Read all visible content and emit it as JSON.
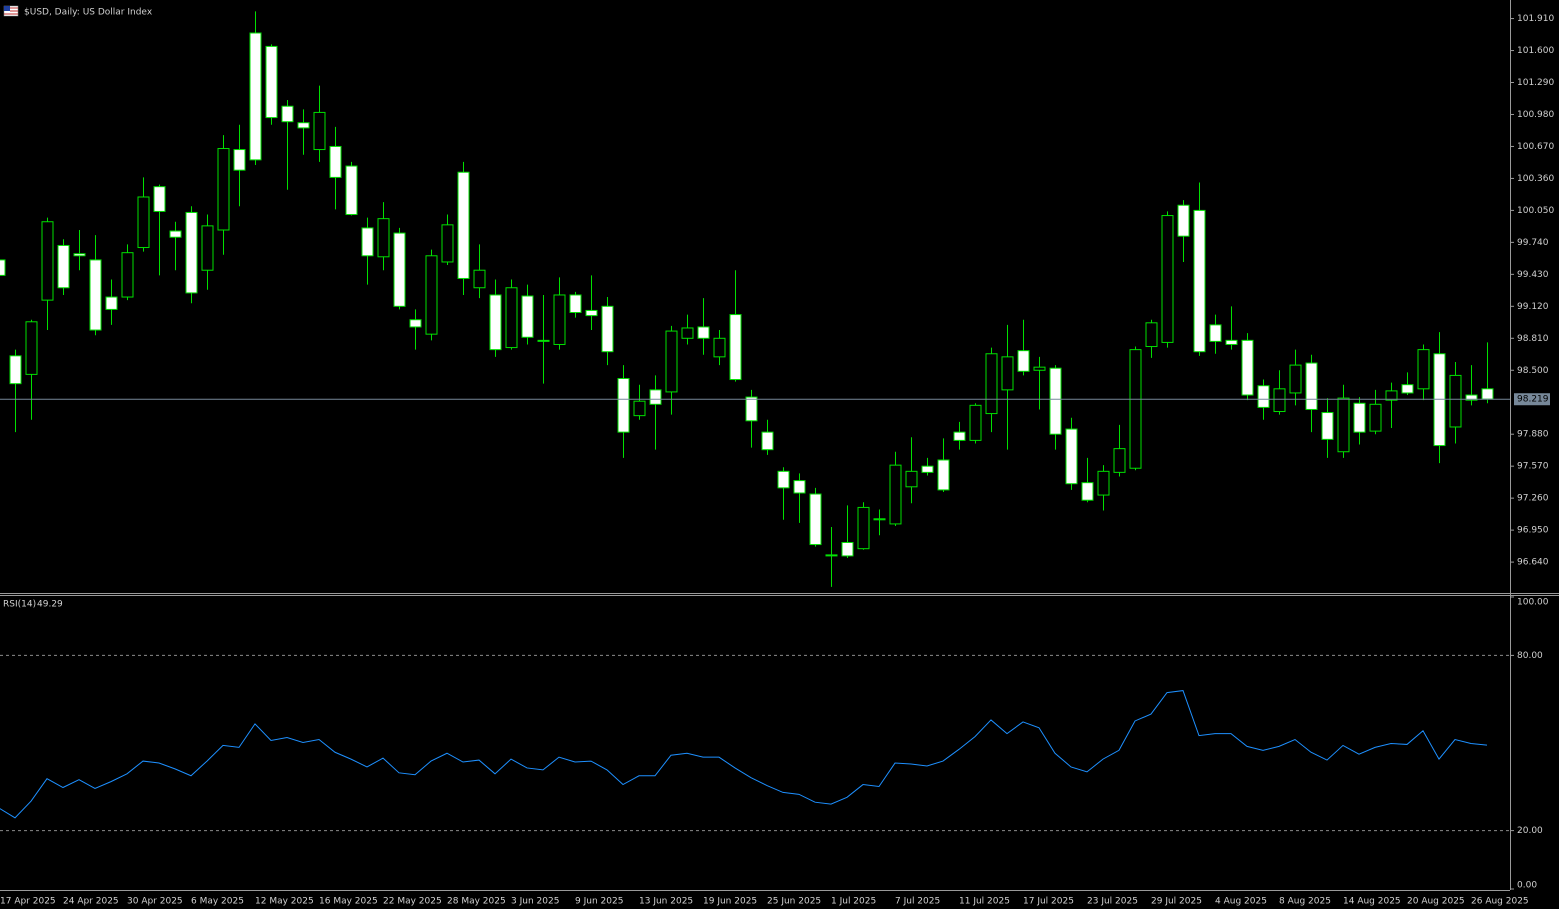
{
  "chart_data": [
    {
      "type": "candlestick",
      "title": "$USD, Daily:  US Dollar Index",
      "categories": [
        "17 Apr 2025",
        null,
        null,
        null,
        "24 Apr 2025",
        null,
        null,
        null,
        "30 Apr 2025",
        null,
        null,
        null,
        "6 May 2025",
        null,
        null,
        null,
        "12 May 2025",
        null,
        null,
        null,
        "16 May 2025",
        null,
        null,
        null,
        "22 May 2025",
        null,
        null,
        null,
        "28 May 2025",
        null,
        null,
        null,
        "3 Jun 2025",
        null,
        null,
        null,
        "9 Jun 2025",
        null,
        null,
        null,
        "13 Jun 2025",
        null,
        null,
        null,
        "19 Jun 2025",
        null,
        null,
        null,
        "25 Jun 2025",
        null,
        null,
        null,
        "1 Jul 2025",
        null,
        null,
        null,
        "7 Jul 2025",
        null,
        null,
        null,
        "11 Jul 2025",
        null,
        null,
        null,
        "17 Jul 2025",
        null,
        null,
        null,
        "23 Jul 2025",
        null,
        null,
        null,
        "29 Jul 2025",
        null,
        null,
        null,
        "4 Aug 2025",
        null,
        null,
        null,
        "8 Aug 2025",
        null,
        null,
        null,
        "14 Aug 2025",
        null,
        null,
        null,
        "20 Aug 2025",
        null,
        null,
        null,
        "26 Aug 2025",
        null
      ],
      "open": [
        99.57,
        98.64,
        98.46,
        99.18,
        99.71,
        99.63,
        99.57,
        99.21,
        99.21,
        99.69,
        100.28,
        99.85,
        100.03,
        99.47,
        99.86,
        100.64,
        101.77,
        101.64,
        101.06,
        100.9,
        100.64,
        100.67,
        100.48,
        99.88,
        99.6,
        99.83,
        98.99,
        98.85,
        99.55,
        100.42,
        99.3,
        99.23,
        98.72,
        99.22,
        98.79,
        98.75,
        99.23,
        99.08,
        99.12,
        98.42,
        98.06,
        98.31,
        98.29,
        98.81,
        98.92,
        98.63,
        99.04,
        98.24,
        97.9,
        97.52,
        97.43,
        97.3,
        96.71,
        96.83,
        96.77,
        97.05,
        97.01,
        97.37,
        97.57,
        97.63,
        97.9,
        97.82,
        98.08,
        98.31,
        98.69,
        98.5,
        98.52,
        97.93,
        97.41,
        97.29,
        97.51,
        97.55,
        98.73,
        98.77,
        100.1,
        100.05,
        98.94,
        98.79,
        98.79,
        98.35,
        98.1,
        98.28,
        98.57,
        98.09,
        97.71,
        98.18,
        97.91,
        98.21,
        98.36,
        98.32,
        98.66,
        97.95,
        98.26,
        98.32
      ],
      "high": [
        99.62,
        98.7,
        98.99,
        99.98,
        99.77,
        99.86,
        99.81,
        99.38,
        99.72,
        100.37,
        100.3,
        99.94,
        100.09,
        100.01,
        100.78,
        100.88,
        101.98,
        101.66,
        101.12,
        101.03,
        101.26,
        100.86,
        100.52,
        99.98,
        100.13,
        99.88,
        99.09,
        99.67,
        100.01,
        100.52,
        99.72,
        99.38,
        99.38,
        99.33,
        99.23,
        99.4,
        99.26,
        99.42,
        99.21,
        98.55,
        98.36,
        98.45,
        98.93,
        99.04,
        99.2,
        98.89,
        99.47,
        98.31,
        98.02,
        97.56,
        97.5,
        97.36,
        96.98,
        97.19,
        97.22,
        97.15,
        97.71,
        97.85,
        97.65,
        97.84,
        98.0,
        98.18,
        98.72,
        98.94,
        98.99,
        98.63,
        98.55,
        98.04,
        97.65,
        97.58,
        97.97,
        98.73,
        98.99,
        100.04,
        100.15,
        100.32,
        99.04,
        99.12,
        98.86,
        98.41,
        98.5,
        98.7,
        98.65,
        98.23,
        98.36,
        98.24,
        98.31,
        98.38,
        98.48,
        98.75,
        98.87,
        98.58,
        98.55,
        98.77
      ],
      "low": [
        99.38,
        97.9,
        98.02,
        98.89,
        99.23,
        99.47,
        98.84,
        98.94,
        99.18,
        99.65,
        99.42,
        99.47,
        99.15,
        99.28,
        99.62,
        100.09,
        100.49,
        100.88,
        100.25,
        100.59,
        100.52,
        100.06,
        100.0,
        99.33,
        99.47,
        99.09,
        98.7,
        98.79,
        99.52,
        99.23,
        99.2,
        98.63,
        98.7,
        98.75,
        98.37,
        98.7,
        99.01,
        98.89,
        98.55,
        97.65,
        98.02,
        97.73,
        98.07,
        98.75,
        98.65,
        98.55,
        98.39,
        97.75,
        97.68,
        97.05,
        97.02,
        96.79,
        96.4,
        96.68,
        96.76,
        96.9,
        96.99,
        97.21,
        97.48,
        97.32,
        97.73,
        97.79,
        97.9,
        97.73,
        98.45,
        98.12,
        97.73,
        97.34,
        97.22,
        97.14,
        97.47,
        97.53,
        98.62,
        98.72,
        99.55,
        98.64,
        98.66,
        98.7,
        98.21,
        98.02,
        98.07,
        98.16,
        97.9,
        97.65,
        97.65,
        97.78,
        97.88,
        97.94,
        98.26,
        98.21,
        97.6,
        97.79,
        98.16,
        98.18
      ],
      "close": [
        99.42,
        98.37,
        98.97,
        99.94,
        99.3,
        99.61,
        98.89,
        99.09,
        99.64,
        100.18,
        100.04,
        99.79,
        99.25,
        99.9,
        100.65,
        100.44,
        100.54,
        100.95,
        100.91,
        100.85,
        101.0,
        100.37,
        100.01,
        99.61,
        99.97,
        99.12,
        98.92,
        99.61,
        99.91,
        99.39,
        99.47,
        98.7,
        99.3,
        98.82,
        98.78,
        99.23,
        99.06,
        99.03,
        98.68,
        97.9,
        98.2,
        98.17,
        98.88,
        98.91,
        98.81,
        98.81,
        98.41,
        98.01,
        97.73,
        97.36,
        97.31,
        96.81,
        96.7,
        96.7,
        97.17,
        97.06,
        97.58,
        97.52,
        97.51,
        97.34,
        97.82,
        98.16,
        98.66,
        98.63,
        98.49,
        98.53,
        97.88,
        97.4,
        97.24,
        97.52,
        97.74,
        98.7,
        98.96,
        100.0,
        99.8,
        98.68,
        98.78,
        98.75,
        98.26,
        98.14,
        98.32,
        98.55,
        98.12,
        97.83,
        98.23,
        97.9,
        98.17,
        98.3,
        98.28,
        98.7,
        97.77,
        98.45,
        98.21,
        98.22
      ],
      "ylim": [
        96.35,
        102.09
      ],
      "yticks": [
        {
          "value": 101.91,
          "label": "101.910"
        },
        {
          "value": 101.6,
          "label": "101.600"
        },
        {
          "value": 101.29,
          "label": "101.290"
        },
        {
          "value": 100.98,
          "label": "100.980"
        },
        {
          "value": 100.67,
          "label": "100.670"
        },
        {
          "value": 100.36,
          "label": "100.360"
        },
        {
          "value": 100.05,
          "label": "100.050"
        },
        {
          "value": 99.74,
          "label": "99.740"
        },
        {
          "value": 99.43,
          "label": "99.430"
        },
        {
          "value": 99.12,
          "label": "99.120"
        },
        {
          "value": 98.81,
          "label": "98.810"
        },
        {
          "value": 98.5,
          "label": "98.500"
        },
        {
          "value": 97.88,
          "label": "97.880"
        },
        {
          "value": 97.57,
          "label": "97.570"
        },
        {
          "value": 97.26,
          "label": "97.260"
        },
        {
          "value": 96.95,
          "label": "96.950"
        },
        {
          "value": 96.64,
          "label": "96.640"
        }
      ],
      "current_price": 98.219,
      "color": "#00e000",
      "bull_fill": "#000000",
      "bear_fill": "#ffffff"
    },
    {
      "type": "line",
      "title": "RSI(14)",
      "color": "#1e90ff",
      "values": [
        27.72,
        24.37,
        30.07,
        37.78,
        34.76,
        37.44,
        34.43,
        36.77,
        39.45,
        43.81,
        43.14,
        41.13,
        38.78,
        43.81,
        49.17,
        48.5,
        56.55,
        50.85,
        51.86,
        50.18,
        51.19,
        46.83,
        44.48,
        41.8,
        44.82,
        39.79,
        39.12,
        43.81,
        46.49,
        43.48,
        44.15,
        39.45,
        44.48,
        41.46,
        40.79,
        45.15,
        43.48,
        43.81,
        40.79,
        35.77,
        38.78,
        38.78,
        45.82,
        46.49,
        45.15,
        45.15,
        41.46,
        38.11,
        35.43,
        33.08,
        32.41,
        29.73,
        29.06,
        31.41,
        35.77,
        35.1,
        43.14,
        42.81,
        42.13,
        43.81,
        47.83,
        52.19,
        57.89,
        53.2,
        57.22,
        55.21,
        46.49,
        41.8,
        40.12,
        44.48,
        47.5,
        57.55,
        59.9,
        67.27,
        67.95,
        52.53,
        53.2,
        53.2,
        48.84,
        47.5,
        48.84,
        51.19,
        46.83,
        44.15,
        49.17,
        46.16,
        48.5,
        49.84,
        49.51,
        54.2,
        44.48,
        51.19,
        49.84,
        49.29
      ],
      "ylim": [
        0,
        100
      ],
      "yticks": [
        {
          "value": 100,
          "label": "100.00"
        },
        {
          "value": 80,
          "label": "80.00"
        },
        {
          "value": 20,
          "label": "20.00"
        },
        {
          "value": 0,
          "label": "0.00"
        }
      ]
    }
  ]
}
